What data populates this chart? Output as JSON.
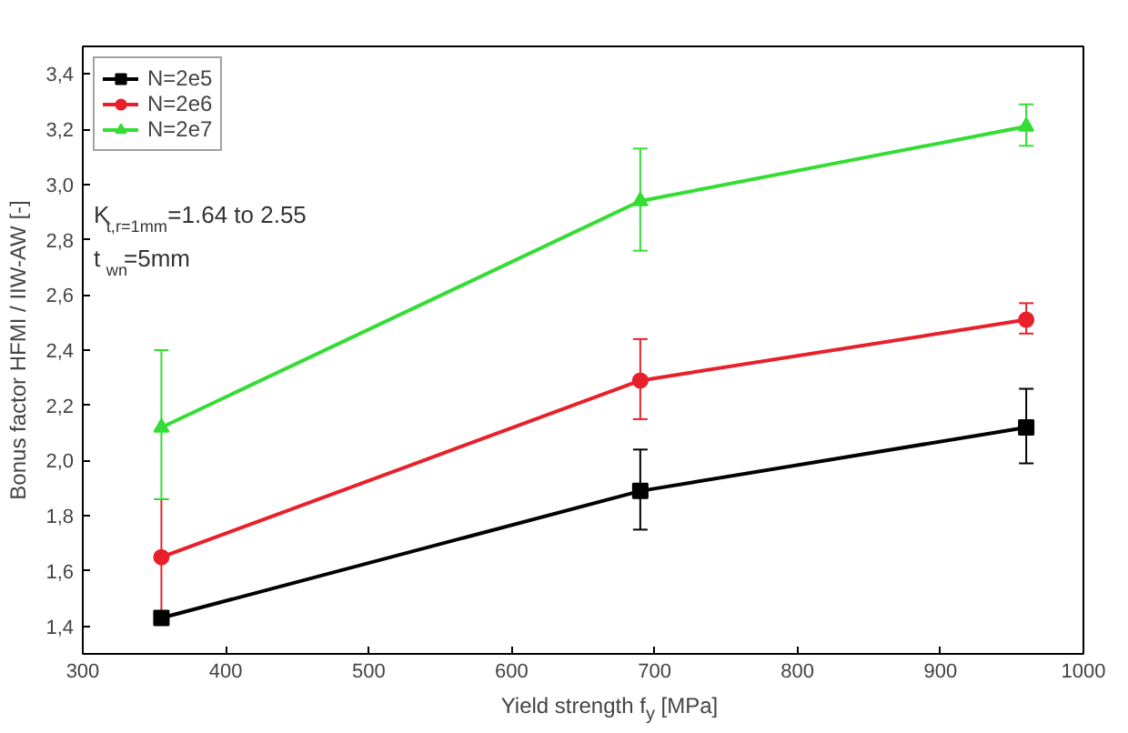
{
  "chart_data": {
    "type": "line",
    "xlabel": "Yield strength f$_{y}$ [MPa]",
    "ylabel": "Bonus factor HFMI / IIW-AW [-]",
    "x": [
      355,
      690,
      960
    ],
    "series": [
      {
        "name": "N=2e5",
        "color": "#000000",
        "marker": "square",
        "values": [
          1.43,
          1.89,
          2.12
        ],
        "errors": [
          null,
          [
            1.75,
            2.04
          ],
          [
            1.99,
            2.26
          ]
        ]
      },
      {
        "name": "N=2e6",
        "color": "#e8202a",
        "marker": "circle",
        "values": [
          1.65,
          2.29,
          2.51
        ],
        "errors": [
          [
            1.44,
            1.86
          ],
          [
            2.15,
            2.44
          ],
          [
            2.46,
            2.57
          ]
        ]
      },
      {
        "name": "N=2e7",
        "color": "#33dd33",
        "marker": "triangle",
        "values": [
          2.12,
          2.94,
          3.21
        ],
        "errors": [
          [
            1.86,
            2.4
          ],
          [
            2.76,
            3.13
          ],
          [
            3.14,
            3.29
          ]
        ]
      }
    ],
    "xlim": [
      300,
      1000
    ],
    "xticks": [
      300,
      400,
      500,
      600,
      700,
      800,
      900,
      1000
    ],
    "ylim": [
      1.3,
      3.5
    ],
    "yticks": [
      {
        "value": 1.4,
        "label": "1,4"
      },
      {
        "value": 1.6,
        "label": "1,6"
      },
      {
        "value": 1.8,
        "label": "1,8"
      },
      {
        "value": 2.0,
        "label": "2,0"
      },
      {
        "value": 2.2,
        "label": "2,2"
      },
      {
        "value": 2.4,
        "label": "2,4"
      },
      {
        "value": 2.6,
        "label": "2,6"
      },
      {
        "value": 2.8,
        "label": "2,8"
      },
      {
        "value": 3.0,
        "label": "3,0"
      },
      {
        "value": 3.2,
        "label": "3,2"
      },
      {
        "value": 3.4,
        "label": "3,4"
      }
    ],
    "annotations": [
      "K$_{t,r=1mm}$=1.64 to 2.55",
      "t$_{wn}$=5mm"
    ],
    "grid": false,
    "legend": "top left",
    "line_style": "solid"
  }
}
